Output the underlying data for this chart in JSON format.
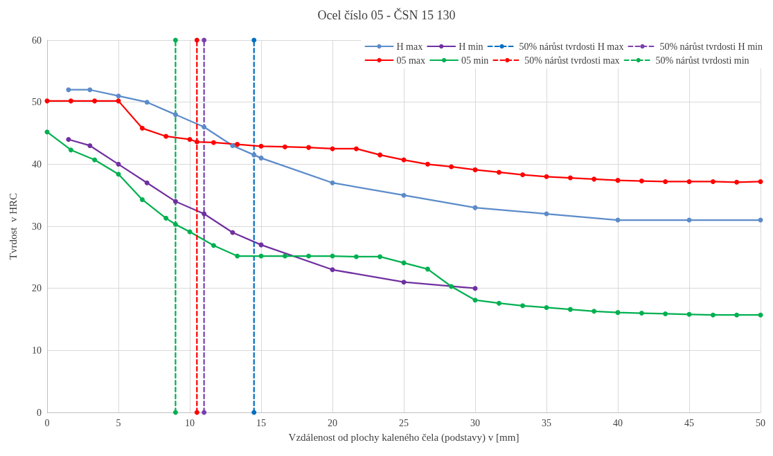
{
  "chart_data": {
    "type": "line",
    "title": "Ocel číslo 05 - ČSN 15 130",
    "xlabel": "Vzdálenost od plochy kaleného čela (podstavy) v [mm]",
    "ylabel": "Tvrdost  v HRC",
    "xlim": [
      0,
      50
    ],
    "xticks": [
      0,
      5,
      10,
      15,
      20,
      25,
      30,
      35,
      40,
      45,
      50
    ],
    "ylim": [
      0,
      60
    ],
    "yticks": [
      0,
      10,
      20,
      30,
      40,
      50,
      60
    ],
    "grid": true,
    "legend": "top right",
    "marker": "circle",
    "line_style": "solid",
    "series": [
      {
        "name": "H max",
        "color": "#5b8bc9",
        "x": [
          1.5,
          3,
          5,
          7,
          9,
          11,
          13,
          14.5,
          15,
          20,
          25,
          30,
          35,
          40,
          45,
          50
        ],
        "values": [
          52,
          52,
          51,
          50,
          48,
          46,
          43,
          41.5,
          41,
          37,
          35,
          33,
          32,
          31,
          31,
          31
        ]
      },
      {
        "name": "H min",
        "color": "#7030a0",
        "x": [
          1.5,
          3,
          5,
          7,
          9,
          11,
          13,
          15,
          20,
          25,
          30
        ],
        "values": [
          44,
          43,
          40,
          37,
          34,
          32,
          29,
          27,
          23,
          21,
          20
        ]
      },
      {
        "name": "50% nárůst tvrdosti H max",
        "color": "#0070c0",
        "line_style": "dashed",
        "x": [
          14.5,
          14.5
        ],
        "values": [
          0,
          60
        ]
      },
      {
        "name": "50% nárůst tvrdosti H min",
        "color": "#7b3fb0",
        "line_style": "dashed",
        "x": [
          11,
          11
        ],
        "values": [
          0,
          60
        ]
      },
      {
        "name": "05 max",
        "color": "#ff0000",
        "x": [
          0,
          1.67,
          3.33,
          5,
          6.67,
          8.33,
          10,
          10.5,
          11.67,
          13.33,
          15,
          16.67,
          18.33,
          20,
          21.67,
          23.33,
          25,
          26.67,
          28.33,
          30,
          31.67,
          33.33,
          35,
          36.67,
          38.33,
          40,
          41.67,
          43.33,
          45,
          46.67,
          48.33,
          50
        ],
        "values": [
          50.2,
          50.2,
          50.2,
          50.2,
          45.8,
          44.5,
          44.0,
          43.6,
          43.5,
          43.2,
          42.9,
          42.8,
          42.7,
          42.5,
          42.5,
          41.5,
          40.7,
          40.0,
          39.6,
          39.1,
          38.7,
          38.3,
          38.0,
          37.8,
          37.6,
          37.4,
          37.3,
          37.2,
          37.2,
          37.2,
          37.1,
          37.2
        ]
      },
      {
        "name": "05 min",
        "color": "#00b050",
        "x": [
          0,
          1.67,
          3.33,
          5,
          6.67,
          8.33,
          9,
          10,
          11.67,
          13.33,
          15,
          16.67,
          18.33,
          20,
          21.67,
          23.33,
          25,
          26.67,
          28.33,
          30,
          31.67,
          33.33,
          35,
          36.67,
          38.33,
          40,
          41.67,
          43.33,
          45,
          46.67,
          48.33,
          50
        ],
        "values": [
          45.2,
          42.3,
          40.7,
          38.4,
          34.3,
          31.3,
          30.3,
          29.1,
          26.9,
          25.2,
          25.2,
          25.2,
          25.2,
          25.2,
          25.1,
          25.1,
          24.1,
          23.1,
          20.3,
          18.1,
          17.6,
          17.2,
          16.9,
          16.6,
          16.3,
          16.1,
          16.0,
          15.9,
          15.8,
          15.7,
          15.7,
          15.7
        ]
      },
      {
        "name": "50% nárůst tvrdosti max",
        "color": "#ff0000",
        "line_style": "dashed",
        "x": [
          10.5,
          10.5
        ],
        "values": [
          0,
          60
        ]
      },
      {
        "name": "50% nárůst tvrdosti min",
        "color": "#00b050",
        "line_style": "dashed",
        "x": [
          9,
          9
        ],
        "values": [
          0,
          60
        ]
      }
    ]
  }
}
